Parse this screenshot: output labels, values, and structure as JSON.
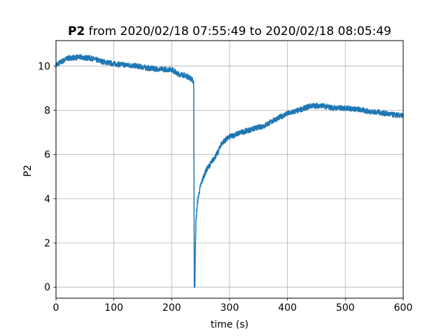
{
  "chart_data": {
    "type": "line",
    "title_bold": "P2",
    "title_rest": " from 2020/02/18 07:55:49 to 2020/02/18 08:05:49",
    "xlabel": "time (s)",
    "ylabel": "P2",
    "xlim": [
      0,
      600
    ],
    "ylim": [
      -0.5,
      11.15
    ],
    "xticks": [
      0,
      100,
      200,
      300,
      400,
      500,
      600
    ],
    "yticks": [
      0,
      2,
      4,
      6,
      8,
      10
    ],
    "grid": true,
    "line_color": "#1f77b4",
    "series": [
      {
        "x": [
          0,
          20,
          40,
          60,
          80,
          100,
          120,
          140,
          160,
          180,
          200,
          210,
          220,
          230,
          238,
          239,
          240,
          241,
          242,
          244,
          246,
          250,
          255,
          260,
          270,
          280,
          285,
          290,
          300,
          320,
          340,
          360,
          380,
          400,
          420,
          440,
          460,
          480,
          500,
          520,
          540,
          560,
          580,
          600
        ],
        "y": [
          10.05,
          10.35,
          10.4,
          10.35,
          10.2,
          10.1,
          10.05,
          10.0,
          9.9,
          9.85,
          9.85,
          9.65,
          9.6,
          9.5,
          9.3,
          0.0,
          0.0,
          2.0,
          3.0,
          3.7,
          4.1,
          4.6,
          5.0,
          5.3,
          5.7,
          6.1,
          6.45,
          6.6,
          6.8,
          7.0,
          7.15,
          7.3,
          7.6,
          7.85,
          8.0,
          8.2,
          8.2,
          8.1,
          8.1,
          8.05,
          7.95,
          7.9,
          7.8,
          7.75
        ],
        "noise": 0.12
      }
    ]
  }
}
